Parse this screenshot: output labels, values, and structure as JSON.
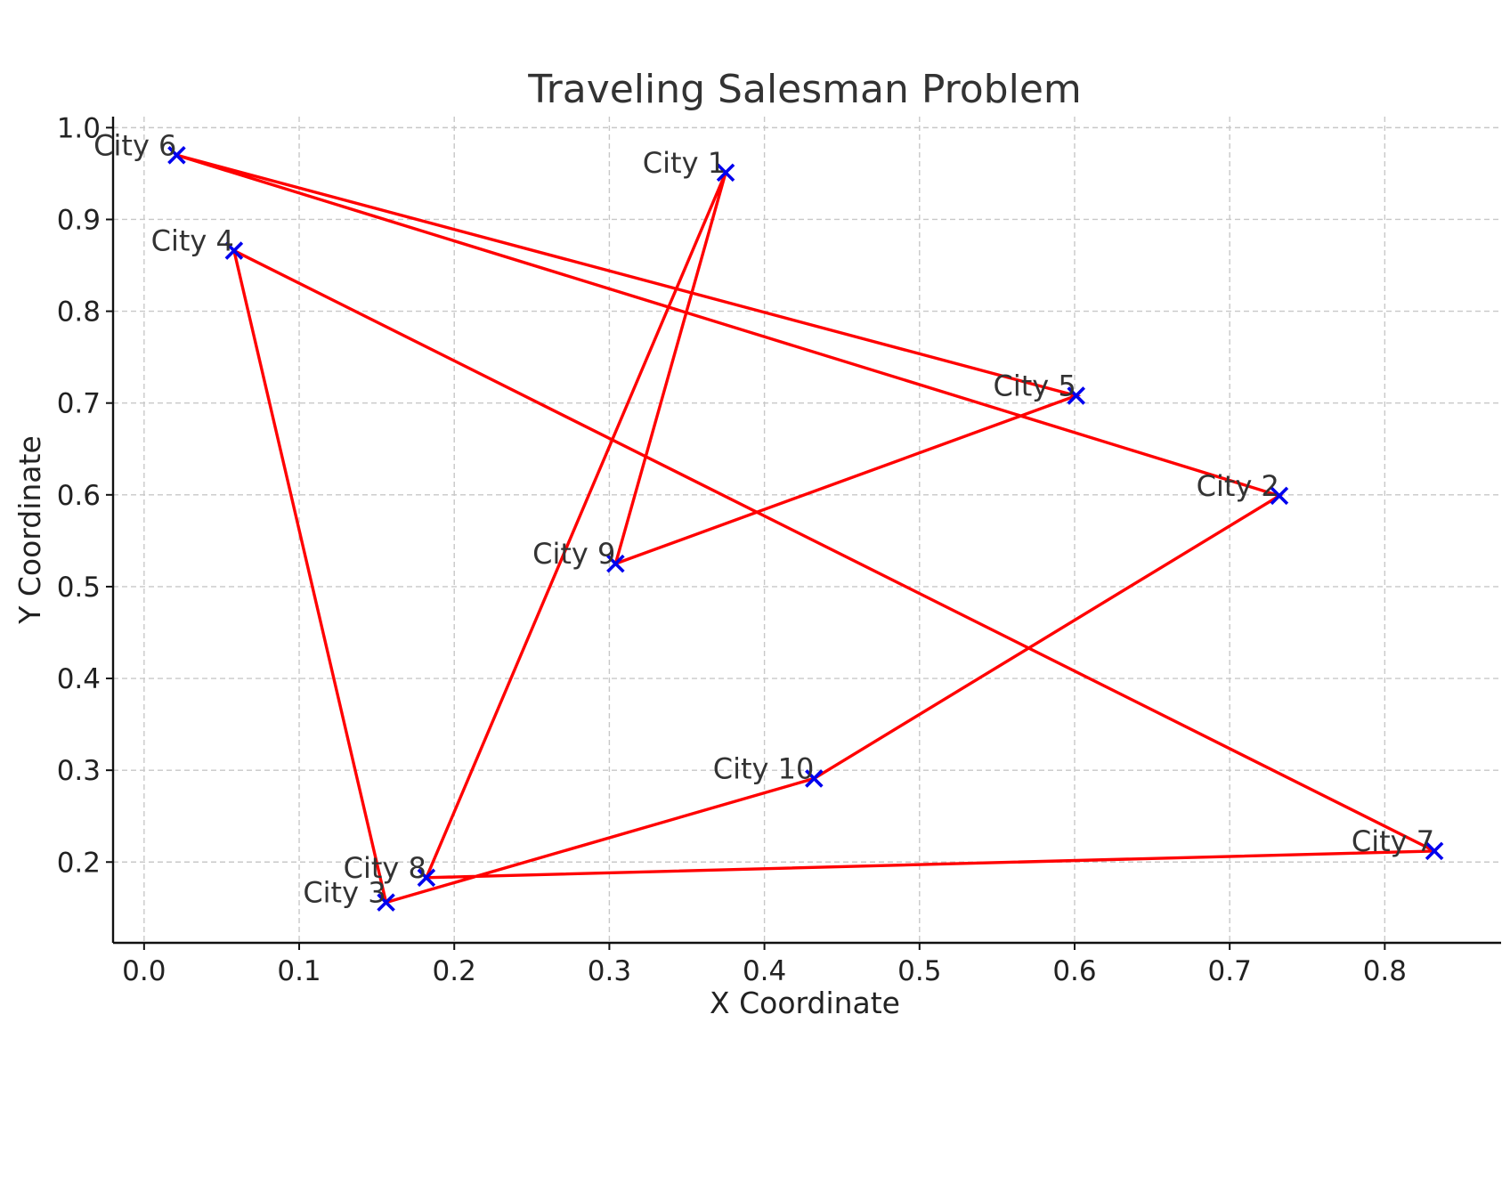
{
  "chart_data": {
    "type": "scatter",
    "title": "Traveling Salesman Problem",
    "xlabel": "X Coordinate",
    "ylabel": "Y Coordinate",
    "xlim": [
      -0.02,
      0.875
    ],
    "ylim": [
      0.112,
      1.012
    ],
    "xticks": [
      "0.0",
      "0.1",
      "0.2",
      "0.3",
      "0.4",
      "0.5",
      "0.6",
      "0.7",
      "0.8"
    ],
    "yticks": [
      "0.2",
      "0.3",
      "0.4",
      "0.5",
      "0.6",
      "0.7",
      "0.8",
      "0.9",
      "1.0"
    ],
    "grid": true,
    "colors": {
      "route": "#ff0000",
      "marker": "#0000ee",
      "grid": "#c8c8c8"
    },
    "cities": [
      {
        "name": "City 1",
        "x": 0.375,
        "y": 0.951
      },
      {
        "name": "City 2",
        "x": 0.732,
        "y": 0.599
      },
      {
        "name": "City 3",
        "x": 0.156,
        "y": 0.156
      },
      {
        "name": "City 4",
        "x": 0.058,
        "y": 0.866
      },
      {
        "name": "City 5",
        "x": 0.601,
        "y": 0.708
      },
      {
        "name": "City 6",
        "x": 0.021,
        "y": 0.97
      },
      {
        "name": "City 7",
        "x": 0.832,
        "y": 0.212
      },
      {
        "name": "City 8",
        "x": 0.182,
        "y": 0.183
      },
      {
        "name": "City 9",
        "x": 0.304,
        "y": 0.525
      },
      {
        "name": "City 10",
        "x": 0.432,
        "y": 0.291
      }
    ],
    "route": [
      "City 1",
      "City 9",
      "City 5",
      "City 6",
      "City 2",
      "City 10",
      "City 3",
      "City 4",
      "City 7",
      "City 8",
      "City 1"
    ]
  }
}
